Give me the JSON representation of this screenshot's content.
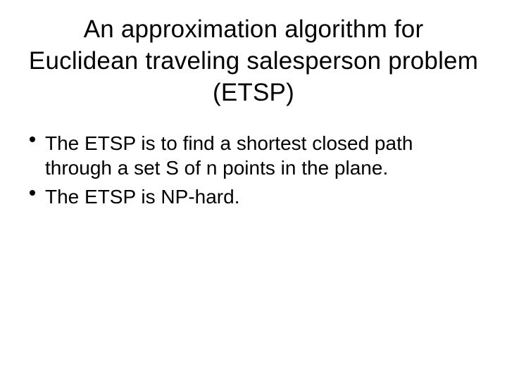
{
  "slide": {
    "title": "An approximation algorithm for Euclidean traveling salesperson problem (ETSP)",
    "bullets": [
      "The ETSP is to find a shortest closed path through a set S of n points in the plane.",
      "The ETSP is NP-hard."
    ]
  },
  "style": {
    "background_color": "#ffffff",
    "text_color": "#000000",
    "title_fontsize": 35,
    "body_fontsize": 28,
    "font_family": "Arial, Helvetica, sans-serif"
  }
}
